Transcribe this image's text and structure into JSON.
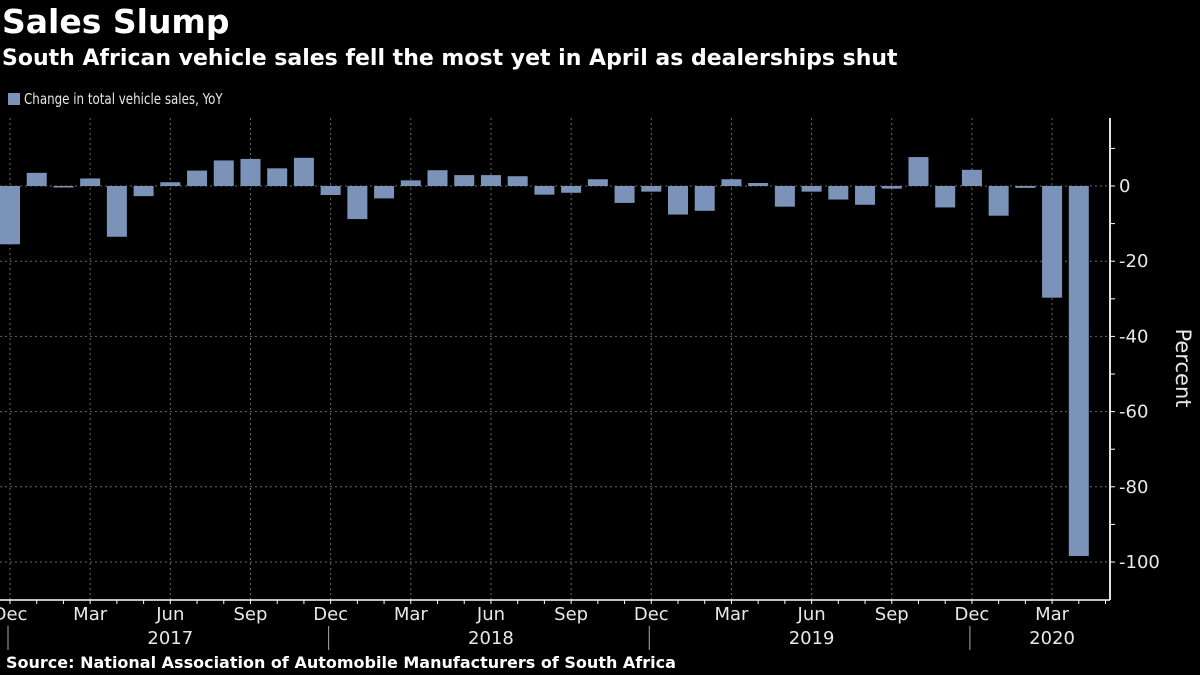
{
  "title": "Sales Slump",
  "subtitle": "South African vehicle sales fell the most yet in April as dealerships shut",
  "legend": {
    "label": "Change in total vehicle sales, YoY",
    "color": "#7b93b8"
  },
  "source": "Source: National Association of Automobile Manufacturers of South Africa",
  "chart_data": {
    "type": "bar",
    "title": "Sales Slump",
    "subtitle": "South African vehicle sales fell the most yet in April as dealerships shut",
    "xlabel": "",
    "ylabel": "Percent",
    "ylim": [
      -105,
      18
    ],
    "yticks": [
      0,
      -20,
      -40,
      -60,
      -80,
      -100
    ],
    "ytick_labels": [
      "0",
      "-20",
      "-40",
      "-60",
      "-80",
      "-100"
    ],
    "grid": true,
    "legend_position": "top-left",
    "categories": [
      "Dec 2016",
      "Jan 2017",
      "Feb 2017",
      "Mar 2017",
      "Apr 2017",
      "May 2017",
      "Jun 2017",
      "Jul 2017",
      "Aug 2017",
      "Sep 2017",
      "Oct 2017",
      "Nov 2017",
      "Dec 2017",
      "Jan 2018",
      "Feb 2018",
      "Mar 2018",
      "Apr 2018",
      "May 2018",
      "Jun 2018",
      "Jul 2018",
      "Aug 2018",
      "Sep 2018",
      "Oct 2018",
      "Nov 2018",
      "Dec 2018",
      "Jan 2019",
      "Feb 2019",
      "Mar 2019",
      "Apr 2019",
      "May 2019",
      "Jun 2019",
      "Jul 2019",
      "Aug 2019",
      "Sep 2019",
      "Oct 2019",
      "Nov 2019",
      "Dec 2019",
      "Jan 2020",
      "Feb 2020",
      "Mar 2020",
      "Apr 2020"
    ],
    "series": [
      {
        "name": "Change in total vehicle sales, YoY",
        "color": "#7b93b8",
        "values": [
          -15.5,
          3.5,
          -0.3,
          2.0,
          -13.5,
          -2.7,
          1.0,
          4.1,
          6.8,
          7.2,
          4.7,
          7.5,
          -2.4,
          -8.8,
          -3.3,
          1.5,
          4.2,
          2.9,
          2.9,
          2.6,
          -2.3,
          -1.8,
          1.8,
          -4.5,
          -1.5,
          -7.6,
          -6.6,
          1.8,
          0.8,
          -5.5,
          -1.5,
          -3.6,
          -5.0,
          -0.7,
          7.7,
          -5.7,
          4.3,
          -7.9,
          -0.5,
          -29.7,
          -98.4
        ]
      }
    ],
    "x_month_labels": [
      {
        "index": 0,
        "label": "Dec"
      },
      {
        "index": 3,
        "label": "Mar"
      },
      {
        "index": 6,
        "label": "Jun"
      },
      {
        "index": 9,
        "label": "Sep"
      },
      {
        "index": 12,
        "label": "Dec"
      },
      {
        "index": 15,
        "label": "Mar"
      },
      {
        "index": 18,
        "label": "Jun"
      },
      {
        "index": 21,
        "label": "Sep"
      },
      {
        "index": 24,
        "label": "Dec"
      },
      {
        "index": 27,
        "label": "Mar"
      },
      {
        "index": 30,
        "label": "Jun"
      },
      {
        "index": 33,
        "label": "Sep"
      },
      {
        "index": 36,
        "label": "Dec"
      },
      {
        "index": 39,
        "label": "Mar"
      }
    ],
    "x_year_labels": [
      {
        "center_index": 6,
        "label": "2017"
      },
      {
        "center_index": 18,
        "label": "2018"
      },
      {
        "center_index": 30,
        "label": "2019"
      },
      {
        "center_index": 39,
        "label": "2020"
      }
    ],
    "year_separators": [
      0,
      12,
      24,
      36
    ]
  }
}
